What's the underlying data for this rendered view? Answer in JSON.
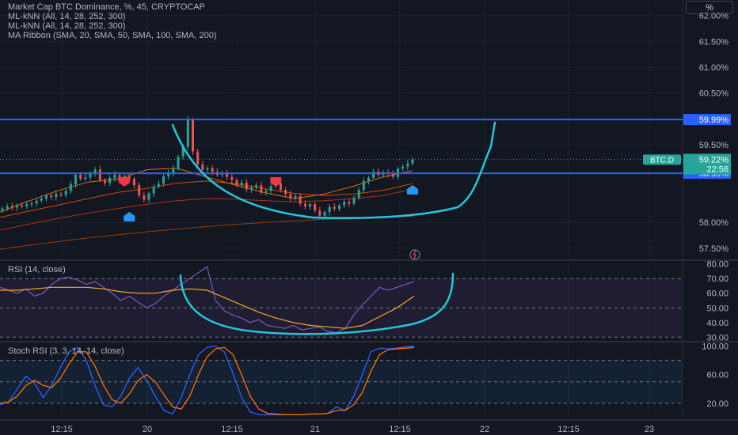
{
  "title": "Market Cap BTC Dominance, %, 45, CRYPTOCAP",
  "indicators": [
    "ML-kNN (All, 14, 28, 252, 300)",
    "ML-kNN (All, 14, 28, 252, 300)",
    "MA Ribbon (SMA, 20, SMA, 50, SMA, 100, SMA, 200)"
  ],
  "scale_button": "%",
  "colors": {
    "background": "#131722",
    "up": "#26a69a",
    "down": "#ef5350",
    "level_line": "#2962ff",
    "drawing": "#26c6da",
    "rsi": "#7e57c2",
    "rsi_ma": "#f9a825",
    "stoch_k": "#2962ff",
    "stoch_d": "#ff6d00",
    "sell_marker": "#f23645",
    "buy_marker": "#2196f3",
    "ma20": "#f57c00",
    "ma50": "#e65100",
    "ma100": "#bf360c",
    "ma200": "#a84300"
  },
  "chart_data": [
    {
      "type": "candlestick",
      "name": "BTC.D",
      "ylim": [
        57.3,
        62.3
      ],
      "y_ticks": [
        "62.00%",
        "61.50%",
        "61.00%",
        "60.50%",
        "59.50%",
        "58.00%",
        "57.50%"
      ],
      "x_ticks": [
        "12:15",
        "20",
        "12:15",
        "21",
        "12:15",
        "22",
        "12:15",
        "23"
      ],
      "levels": [
        {
          "value": 59.99,
          "label": "59.99%"
        },
        {
          "value": 58.95,
          "label": "58.95%"
        }
      ],
      "current": {
        "symbol": "BTC.D",
        "value": "59.22%",
        "countdown": "22:56"
      },
      "closes": [
        58.27,
        58.31,
        58.29,
        58.33,
        58.31,
        58.35,
        58.37,
        58.42,
        58.46,
        58.52,
        58.49,
        58.55,
        58.53,
        58.61,
        58.74,
        58.92,
        58.84,
        58.87,
        58.95,
        59.02,
        58.82,
        58.76,
        58.86,
        58.92,
        58.79,
        58.89,
        58.84,
        58.72,
        58.52,
        58.44,
        58.56,
        58.69,
        58.75,
        58.89,
        58.96,
        59.04,
        59.27,
        59.46,
        59.99,
        59.37,
        59.12,
        59.02,
        59.05,
        58.98,
        58.92,
        58.96,
        58.88,
        58.82,
        58.72,
        58.77,
        58.64,
        58.68,
        58.72,
        58.58,
        58.61,
        58.7,
        58.75,
        58.63,
        58.55,
        58.46,
        58.51,
        58.36,
        58.31,
        58.35,
        58.23,
        58.13,
        58.2,
        58.3,
        58.26,
        58.33,
        58.4,
        58.36,
        58.48,
        58.63,
        58.8,
        58.86,
        58.98,
        58.92,
        58.97,
        58.94,
        58.88,
        59.04,
        59.08,
        59.14,
        59.22
      ],
      "moving_averages": [
        {
          "name": "SMA 20",
          "values": [
            58.2,
            58.42,
            58.62,
            58.78,
            58.84,
            59.02,
            59.05,
            58.88,
            58.72,
            58.57,
            58.46,
            58.55,
            58.7,
            58.88,
            59.0
          ]
        },
        {
          "name": "SMA 50",
          "values": [
            58.1,
            58.22,
            58.34,
            58.46,
            58.58,
            58.66,
            58.76,
            58.8,
            58.75,
            58.65,
            58.56,
            58.52,
            58.55,
            58.62,
            58.75
          ]
        },
        {
          "name": "SMA 100",
          "values": [
            57.85,
            57.97,
            58.08,
            58.18,
            58.27,
            58.35,
            58.42,
            58.46,
            58.45,
            58.42,
            58.4,
            58.42,
            58.46,
            58.52,
            58.64
          ]
        },
        {
          "name": "SMA 200",
          "values": [
            57.48,
            57.56,
            57.63,
            57.7,
            57.76,
            57.82,
            57.87,
            57.92,
            57.96,
            58.0,
            58.03,
            58.06,
            58.08,
            58.1,
            58.12
          ]
        }
      ],
      "signals": [
        {
          "type": "sell",
          "bar": 25
        },
        {
          "type": "buy",
          "bar": 26
        },
        {
          "type": "sell",
          "bar": 56
        },
        {
          "type": "buy",
          "bar": 84
        }
      ]
    },
    {
      "type": "line",
      "name": "RSI (14, close)",
      "ylim": [
        28,
        82
      ],
      "y_ticks": [
        "80.00",
        "70.00",
        "60.00",
        "50.00",
        "40.00",
        "30.00"
      ],
      "band": [
        30,
        70
      ],
      "series": [
        {
          "name": "RSI",
          "values": [
            64,
            62,
            60,
            63,
            58,
            60,
            66,
            70,
            71,
            69,
            66,
            68,
            64,
            60,
            55,
            58,
            54,
            50,
            53,
            58,
            62,
            66,
            70,
            74,
            78,
            55,
            48,
            45,
            43,
            40,
            42,
            38,
            37,
            36,
            38,
            35,
            36,
            37,
            34,
            33,
            36,
            45,
            52,
            58,
            64,
            62,
            64,
            66,
            68
          ]
        },
        {
          "name": "RSI-based MA",
          "values": [
            62,
            62,
            63,
            64,
            64,
            64,
            63,
            61,
            60,
            60,
            62,
            63,
            62,
            57,
            52,
            47,
            43,
            40,
            38,
            37,
            36,
            38,
            44,
            50,
            58
          ]
        }
      ]
    },
    {
      "type": "line",
      "name": "Stoch RSI (3, 3, 14, 14, close)",
      "ylim": [
        0,
        105
      ],
      "y_ticks": [
        "100.00",
        "60.00",
        "20.00"
      ],
      "band": [
        20,
        80
      ],
      "series": [
        {
          "name": "K",
          "values": [
            18,
            22,
            40,
            58,
            48,
            28,
            45,
            70,
            92,
            98,
            80,
            45,
            18,
            15,
            30,
            55,
            70,
            52,
            30,
            10,
            5,
            28,
            60,
            88,
            98,
            100,
            92,
            62,
            28,
            8,
            4,
            4,
            4,
            4,
            4,
            4,
            5,
            5,
            6,
            15,
            10,
            30,
            60,
            92,
            97,
            96,
            97,
            99,
            100
          ]
        },
        {
          "name": "D",
          "values": [
            20,
            22,
            30,
            45,
            52,
            45,
            42,
            55,
            75,
            92,
            92,
            72,
            45,
            25,
            20,
            33,
            52,
            60,
            50,
            32,
            15,
            12,
            30,
            60,
            85,
            96,
            98,
            88,
            60,
            30,
            12,
            6,
            5,
            4,
            4,
            4,
            5,
            5,
            6,
            10,
            10,
            18,
            35,
            65,
            88,
            95,
            96,
            97,
            98
          ]
        }
      ]
    }
  ]
}
